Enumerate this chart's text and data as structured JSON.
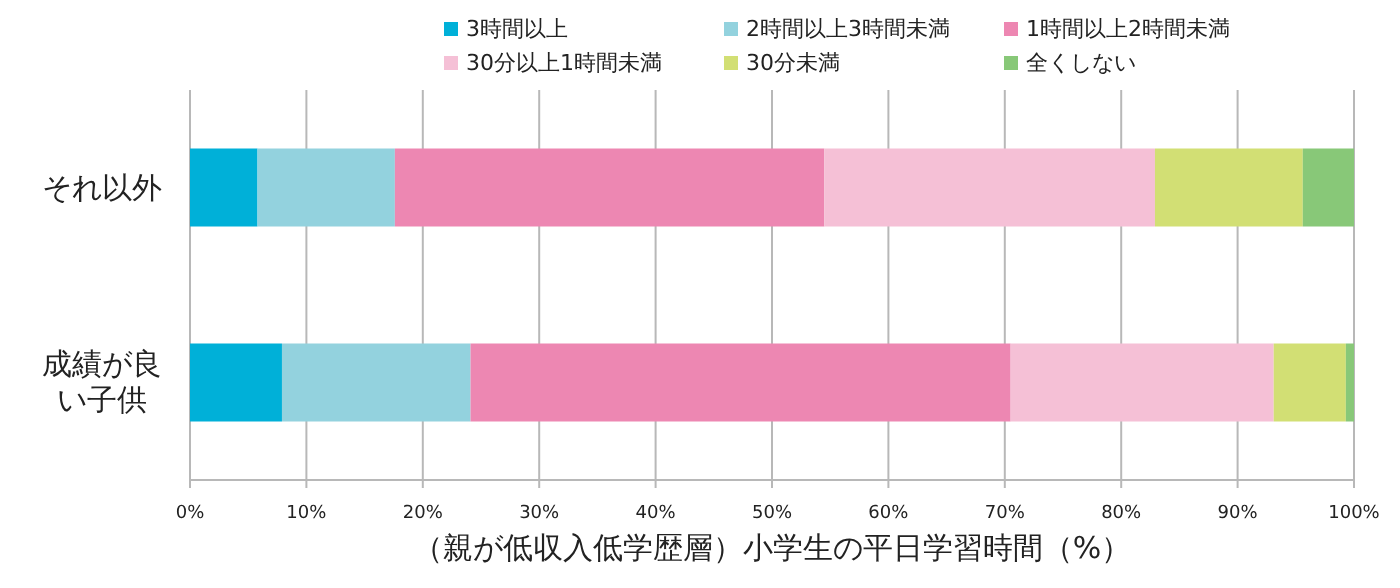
{
  "chart_data": {
    "type": "bar",
    "orientation": "horizontal",
    "stacked": true,
    "xlabel": "（親が低収入低学歴層）小学生の平日学習時間（%）",
    "categories": [
      "それ以外",
      "成績が良い子供"
    ],
    "series": [
      {
        "name": "3時間以上",
        "color": "#00b0d8",
        "values": [
          5.8,
          7.9
        ]
      },
      {
        "name": "2時間以上3時間未満",
        "color": "#93d2de",
        "values": [
          11.8,
          16.2
        ]
      },
      {
        "name": "1時間以上2時間未満",
        "color": "#ed87b2",
        "values": [
          36.9,
          46.4
        ]
      },
      {
        "name": "30分以上1時間未満",
        "color": "#f5c0d6",
        "values": [
          28.4,
          22.6
        ]
      },
      {
        "name": "30分未満",
        "color": "#d2df74",
        "values": [
          12.7,
          6.2
        ]
      },
      {
        "name": "全くしない",
        "color": "#88c878",
        "values": [
          4.4,
          0.7
        ]
      }
    ],
    "xlim": [
      0,
      100
    ],
    "xticks": [
      {
        "value": 0,
        "label": "0%"
      },
      {
        "value": 10,
        "label": "10%"
      },
      {
        "value": 20,
        "label": "20%"
      },
      {
        "value": 30,
        "label": "30%"
      },
      {
        "value": 40,
        "label": "40%"
      },
      {
        "value": 50,
        "label": "50%"
      },
      {
        "value": 60,
        "label": "60%"
      },
      {
        "value": 70,
        "label": "70%"
      },
      {
        "value": 80,
        "label": "80%"
      },
      {
        "value": 90,
        "label": "90%"
      },
      {
        "value": 100,
        "label": "100%"
      }
    ],
    "grid": "x",
    "legend": "top"
  }
}
